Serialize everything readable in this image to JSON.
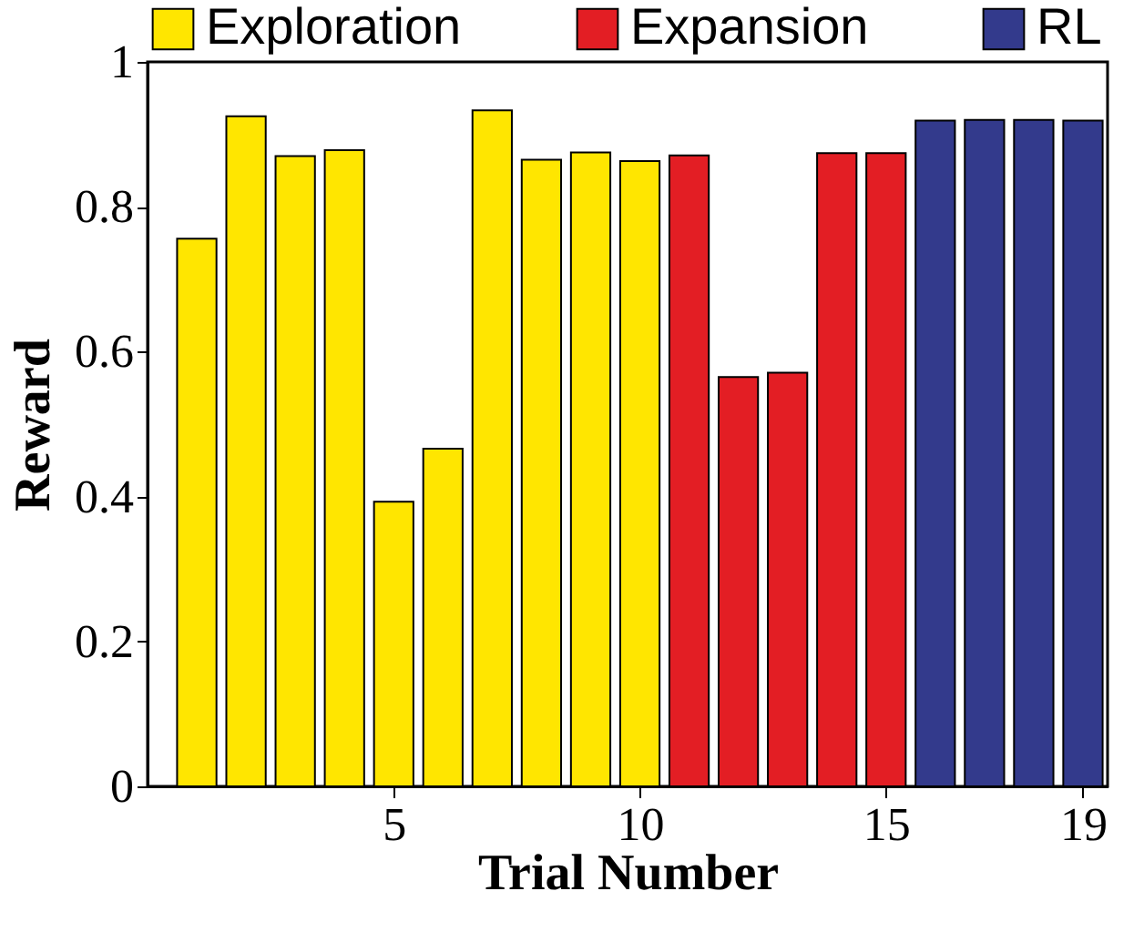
{
  "chart_data": {
    "type": "bar",
    "xlabel": "Trial Number",
    "ylabel": "Reward",
    "xlim": [
      0,
      19.5
    ],
    "xticks": [
      5,
      10,
      15,
      19
    ],
    "ylim": [
      0,
      1
    ],
    "yticks": [
      0,
      0.2,
      0.4,
      0.6,
      0.8,
      1
    ],
    "series": [
      {
        "name": "Exploration",
        "color": "#ffe600",
        "x": [
          1,
          2,
          3,
          4,
          5,
          6,
          7,
          8,
          9,
          10
        ],
        "values": [
          0.756,
          0.925,
          0.87,
          0.878,
          0.393,
          0.466,
          0.933,
          0.865,
          0.875,
          0.863
        ]
      },
      {
        "name": "Expansion",
        "color": "#e31e24",
        "x": [
          11,
          12,
          13,
          14,
          15
        ],
        "values": [
          0.871,
          0.565,
          0.571,
          0.874,
          0.874
        ]
      },
      {
        "name": "RL",
        "color": "#333a8c",
        "x": [
          16,
          17,
          18,
          19
        ],
        "values": [
          0.919,
          0.92,
          0.92,
          0.919
        ]
      }
    ],
    "legend": "top",
    "grid": false
  }
}
